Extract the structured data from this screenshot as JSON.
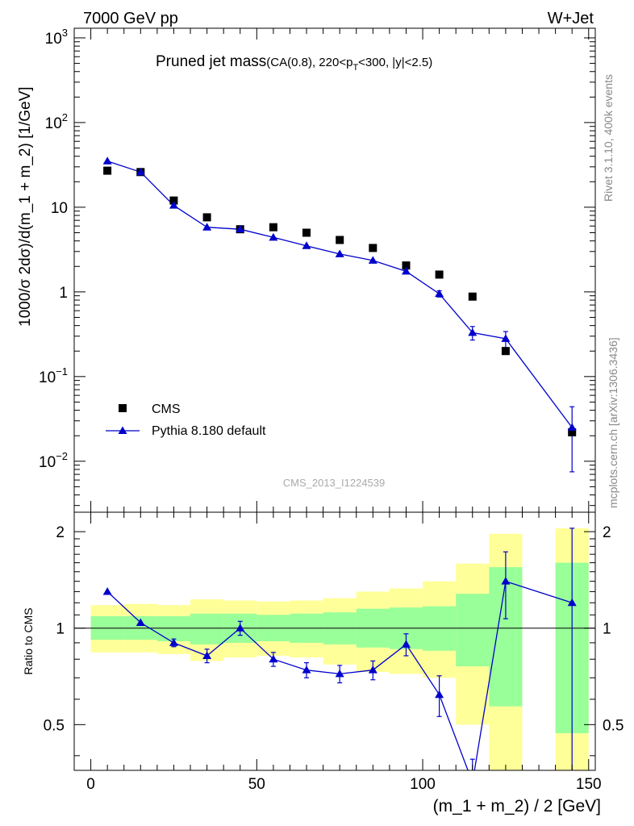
{
  "header": {
    "left": "7000 GeV pp",
    "right": "W+Jet"
  },
  "side_labels": {
    "rivet": "Rivet 3.1.10,  400k events",
    "mcplots": "mcplots.cern.ch [arXiv:1306.3436]"
  },
  "chart_data": [
    {
      "type": "scatter",
      "title_main": "Pruned jet mass",
      "title_sub": "(CA(0.8), 220<p",
      "title_sub_index": "T",
      "title_sub_tail": "<300, |y|<2.5)",
      "analysis_tag": "CMS_2013_I1224539",
      "ylabel": "1000/σ 2dσ)/d(m_1 + m_2) [1/GeV]",
      "yscale": "log",
      "xlim": [
        -5,
        152
      ],
      "ylim": [
        0.0025,
        1300
      ],
      "y_ticks": [
        {
          "base": "10",
          "exp": "−2"
        },
        {
          "base": "10",
          "exp": "−1"
        },
        {
          "base": "1",
          "exp": ""
        },
        {
          "base": "10",
          "exp": ""
        },
        {
          "base": "10",
          "exp": "2"
        },
        {
          "base": "10",
          "exp": "3"
        }
      ],
      "legend_position": "bottom-left",
      "series": [
        {
          "name": "CMS",
          "color": "#000000",
          "marker": "square",
          "x": [
            5,
            15,
            25,
            35,
            45,
            55,
            65,
            75,
            85,
            95,
            105,
            115,
            125,
            145
          ],
          "y": [
            27,
            26,
            12,
            7.6,
            5.5,
            5.8,
            5.0,
            4.1,
            3.3,
            2.05,
            1.6,
            0.88,
            0.2,
            0.022
          ]
        },
        {
          "name": "Pythia 8.180 default",
          "color": "#0000cc",
          "marker": "triangle",
          "x": [
            5,
            15,
            25,
            35,
            45,
            55,
            65,
            75,
            85,
            95,
            105,
            115,
            125,
            145
          ],
          "y": [
            35,
            26,
            10.5,
            5.8,
            5.5,
            4.4,
            3.5,
            2.8,
            2.35,
            1.75,
            0.95,
            0.33,
            0.28,
            0.025
          ],
          "err_lo": [
            0,
            0,
            0,
            0,
            0,
            0,
            0,
            0,
            0,
            0.1,
            0.08,
            0.06,
            0.06,
            0.0175
          ],
          "err_hi": [
            0,
            0,
            0,
            0,
            0,
            0,
            0,
            0,
            0,
            0.1,
            0.08,
            0.06,
            0.06,
            0.019
          ]
        }
      ]
    },
    {
      "type": "scatter",
      "ylabel": "Ratio to CMS",
      "xlabel": "(m_1 + m_2) / 2 [GeV]",
      "xlim": [
        -5,
        152
      ],
      "ylim": [
        0.36,
        2.3
      ],
      "yscale": "log",
      "x_ticks": [
        0,
        50,
        100,
        150
      ],
      "y_ticks": [
        0.5,
        1,
        2
      ],
      "reference_line": 1,
      "bands": {
        "inner_color": "#99ff99",
        "outer_color": "#ffff99",
        "bins": [
          {
            "lo": 0,
            "hi": 10,
            "g": [
              0.92,
              1.09
            ],
            "y": [
              0.84,
              1.18
            ]
          },
          {
            "lo": 10,
            "hi": 20,
            "g": [
              0.92,
              1.09
            ],
            "y": [
              0.84,
              1.19
            ]
          },
          {
            "lo": 20,
            "hi": 30,
            "g": [
              0.91,
              1.09
            ],
            "y": [
              0.83,
              1.18
            ]
          },
          {
            "lo": 30,
            "hi": 40,
            "g": [
              0.89,
              1.11
            ],
            "y": [
              0.79,
              1.23
            ]
          },
          {
            "lo": 40,
            "hi": 50,
            "g": [
              0.9,
              1.11
            ],
            "y": [
              0.81,
              1.22
            ]
          },
          {
            "lo": 50,
            "hi": 60,
            "g": [
              0.91,
              1.1
            ],
            "y": [
              0.82,
              1.21
            ]
          },
          {
            "lo": 60,
            "hi": 70,
            "g": [
              0.9,
              1.11
            ],
            "y": [
              0.81,
              1.22
            ]
          },
          {
            "lo": 70,
            "hi": 80,
            "g": [
              0.89,
              1.12
            ],
            "y": [
              0.77,
              1.24
            ]
          },
          {
            "lo": 80,
            "hi": 90,
            "g": [
              0.87,
              1.15
            ],
            "y": [
              0.73,
              1.3
            ]
          },
          {
            "lo": 90,
            "hi": 100,
            "g": [
              0.86,
              1.16
            ],
            "y": [
              0.72,
              1.33
            ]
          },
          {
            "lo": 100,
            "hi": 110,
            "g": [
              0.85,
              1.17
            ],
            "y": [
              0.7,
              1.4
            ]
          },
          {
            "lo": 110,
            "hi": 120,
            "g": [
              0.76,
              1.28
            ],
            "y": [
              0.5,
              1.59
            ]
          },
          {
            "lo": 120,
            "hi": 130,
            "g": [
              0.57,
              1.55
            ],
            "y": [
              0.3,
              1.97
            ]
          },
          {
            "lo": 140,
            "hi": 150,
            "g": [
              0.47,
              1.6
            ],
            "y": [
              0.3,
              2.05
            ]
          }
        ]
      },
      "series": [
        {
          "name": "Pythia 8.180 default",
          "color": "#0000cc",
          "marker": "triangle",
          "x": [
            5,
            15,
            25,
            35,
            45,
            55,
            65,
            75,
            85,
            95,
            105,
            115,
            125,
            145
          ],
          "y": [
            1.3,
            1.04,
            0.9,
            0.82,
            1.0,
            0.8,
            0.74,
            0.72,
            0.74,
            0.89,
            0.62,
            0.33,
            1.4,
            1.2
          ],
          "err_lo": [
            0,
            0,
            0.025,
            0.04,
            0.05,
            0.04,
            0.04,
            0.045,
            0.05,
            0.07,
            0.09,
            0.06,
            0.33,
            0.9
          ],
          "err_hi": [
            0,
            0,
            0.025,
            0.04,
            0.05,
            0.04,
            0.04,
            0.045,
            0.05,
            0.07,
            0.09,
            0.06,
            0.33,
            0.85
          ]
        }
      ]
    }
  ]
}
